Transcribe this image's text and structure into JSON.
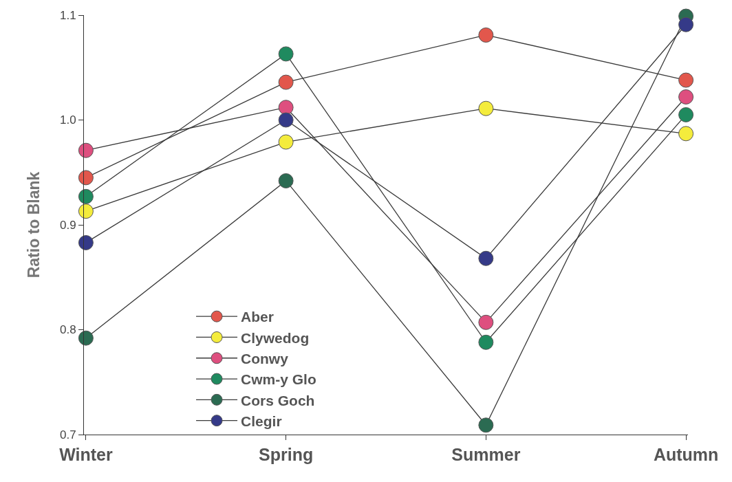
{
  "chart_data": {
    "type": "line",
    "ylabel": "Ratio to Blank",
    "categories": [
      "Winter",
      "Spring",
      "Summer",
      "Autumn"
    ],
    "series": [
      {
        "name": "Aber",
        "color": "#e2574c",
        "values": [
          0.945,
          1.036,
          1.081,
          1.038
        ]
      },
      {
        "name": "Clywedog",
        "color": "#f4ec3c",
        "values": [
          0.913,
          0.979,
          1.011,
          0.987
        ]
      },
      {
        "name": "Conwy",
        "color": "#de4f7f",
        "values": [
          0.971,
          1.012,
          0.807,
          1.022
        ]
      },
      {
        "name": "Cwm-y Glo",
        "color": "#1f8a5f",
        "values": [
          0.927,
          1.063,
          0.788,
          1.005
        ]
      },
      {
        "name": "Cors Goch",
        "color": "#2b6b52",
        "values": [
          0.792,
          0.942,
          0.709,
          1.099
        ]
      },
      {
        "name": "Clegir",
        "color": "#353a88",
        "values": [
          0.883,
          1.0,
          0.868,
          1.091
        ]
      }
    ],
    "ylim": [
      0.7,
      1.1
    ],
    "yticks": [
      0.7,
      0.8,
      0.9,
      {
        "value": 1.0,
        "label": "1.0"
      },
      1.1
    ],
    "grid": false,
    "legend": "bottom",
    "marker": "circle",
    "line_style": "solid"
  }
}
